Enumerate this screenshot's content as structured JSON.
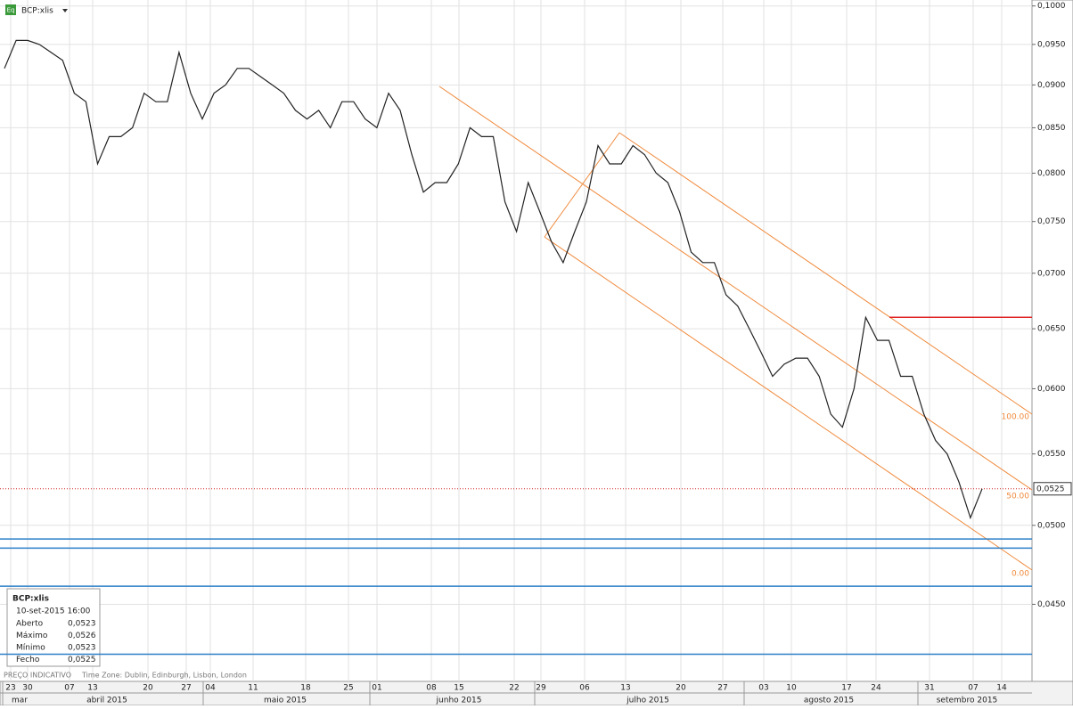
{
  "header": {
    "symbol": "BCP:xlis",
    "badge": "Eq"
  },
  "chart_data": {
    "type": "line",
    "series": [
      {
        "color": "#222222",
        "values": [
          0.092,
          0.0955,
          0.0955,
          0.095,
          0.094,
          0.093,
          0.089,
          0.088,
          0.081,
          0.084,
          0.084,
          0.085,
          0.089,
          0.088,
          0.088,
          0.094,
          0.089,
          0.086,
          0.089,
          0.09,
          0.092,
          0.092,
          0.091,
          0.09,
          0.089,
          0.087,
          0.086,
          0.087,
          0.085,
          0.088,
          0.088,
          0.086,
          0.085,
          0.089,
          0.087,
          0.082,
          0.078,
          0.079,
          0.079,
          0.081,
          0.085,
          0.084,
          0.084,
          0.077,
          0.074,
          0.079,
          0.076,
          0.073,
          0.071,
          0.074,
          0.077,
          0.083,
          0.081,
          0.081,
          0.083,
          0.082,
          0.08,
          0.079,
          0.076,
          0.072,
          0.071,
          0.071,
          0.068,
          0.067,
          0.065,
          0.063,
          0.061,
          0.062,
          0.0625,
          0.0625,
          0.061,
          0.058,
          0.057,
          0.06,
          0.066,
          0.064,
          0.064,
          0.061,
          0.061,
          0.058,
          0.056,
          0.055,
          0.053,
          0.0505,
          0.0525
        ]
      }
    ],
    "log_scale": true,
    "grid": true,
    "ylim": [
      0.0406,
      0.1008
    ],
    "yticks": [
      {
        "value": 0.1,
        "label": "0,1000"
      },
      {
        "value": 0.095,
        "label": "0,0950"
      },
      {
        "value": 0.09,
        "label": "0,0900"
      },
      {
        "value": 0.085,
        "label": "0,0850"
      },
      {
        "value": 0.08,
        "label": "0,0800"
      },
      {
        "value": 0.075,
        "label": "0,0750"
      },
      {
        "value": 0.07,
        "label": "0,0700"
      },
      {
        "value": 0.065,
        "label": "0,0650"
      },
      {
        "value": 0.06,
        "label": "0,0600"
      },
      {
        "value": 0.055,
        "label": "0,0550"
      },
      {
        "value": 0.05,
        "label": "0,0500"
      },
      {
        "value": 0.045,
        "label": "0,0450"
      }
    ],
    "last_price": {
      "value": 0.0525,
      "label": "0,0525"
    },
    "resistance": 0.066,
    "support_levels": [
      0.0491,
      0.0485,
      0.0461,
      0.0421
    ],
    "fib_levels": [
      "100.00",
      "50.00",
      "0.00"
    ],
    "x_axis": {
      "days": [
        "23",
        "30",
        "07",
        "13",
        "20",
        "27",
        "04",
        "11",
        "18",
        "25",
        "01",
        "08",
        "15",
        "22",
        "29",
        "06",
        "13",
        "20",
        "27",
        "03",
        "10",
        "17",
        "24",
        "31",
        "07",
        "14"
      ],
      "months": [
        "mar",
        "abril 2015",
        "maio 2015",
        "junho 2015",
        "julho 2015",
        "agosto 2015",
        "setembro 2015"
      ]
    }
  },
  "info_box": {
    "title": "BCP:xlis",
    "date": "10-set-2015 16:00",
    "rows": [
      [
        "Aberto",
        "0,0523"
      ],
      [
        "Máximo",
        "0,0526"
      ],
      [
        "Mínimo",
        "0,0523"
      ],
      [
        "Fecho",
        "0,0525"
      ]
    ]
  },
  "footer": {
    "source": "PREÇO INDICATIVO",
    "timezone": "Time Zone: Dublin, Edinburgh, Lisbon, London"
  }
}
